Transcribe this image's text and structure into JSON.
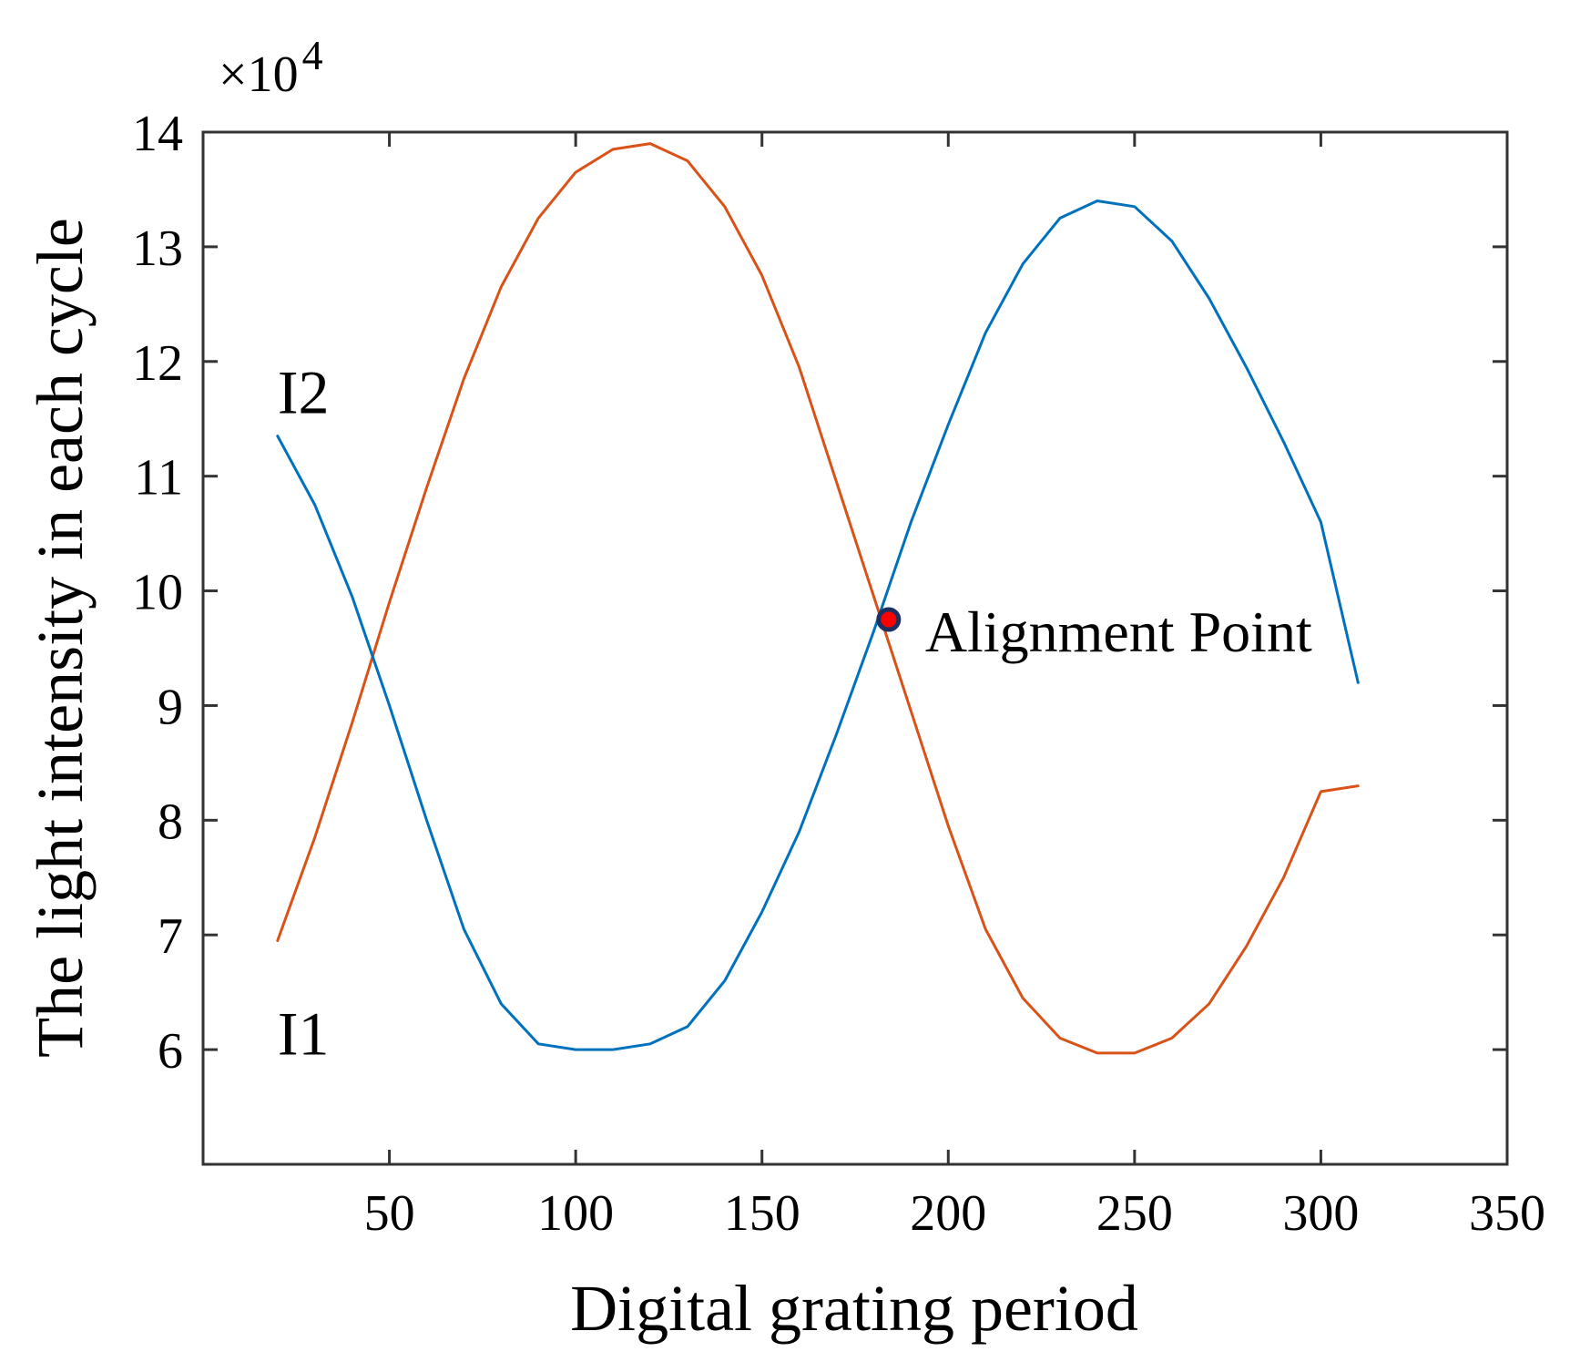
{
  "chart_data": {
    "type": "line",
    "title": "",
    "xlabel": "Digital grating period",
    "ylabel": "The light intensity in each cycle",
    "y_multiplier_label": "×10",
    "y_multiplier_exponent": "4",
    "xlim": [
      0,
      350
    ],
    "ylim": [
      5,
      14
    ],
    "xticks": [
      50,
      100,
      150,
      200,
      250,
      300,
      350
    ],
    "yticks": [
      6,
      7,
      8,
      9,
      10,
      11,
      12,
      13,
      14
    ],
    "grid": false,
    "legend": "none",
    "x": [
      20,
      30,
      40,
      50,
      60,
      70,
      80,
      90,
      100,
      110,
      120,
      130,
      140,
      150,
      160,
      170,
      180,
      190,
      200,
      210,
      220,
      230,
      240,
      250,
      260,
      270,
      280,
      290,
      300,
      310
    ],
    "series": [
      {
        "name": "I1",
        "color": "#d95319",
        "values": [
          6.95,
          7.85,
          8.85,
          9.9,
          10.9,
          11.85,
          12.65,
          13.25,
          13.65,
          13.85,
          13.9,
          13.75,
          13.35,
          12.75,
          11.95,
          10.95,
          9.95,
          8.95,
          7.95,
          7.05,
          6.45,
          6.1,
          5.97,
          5.97,
          6.1,
          6.4,
          6.9,
          7.5,
          8.25,
          8.3
        ],
        "values_note_removed": true,
        "label_text": "I1"
      },
      {
        "name": "I2",
        "color": "#0072bd",
        "values": [
          11.35,
          10.75,
          9.95,
          9.0,
          8.0,
          7.05,
          6.4,
          6.05,
          6.0,
          6.0,
          6.05,
          6.2,
          6.6,
          7.2,
          7.9,
          8.75,
          9.65,
          10.6,
          11.45,
          12.25,
          12.85,
          13.25,
          13.4,
          13.35,
          13.05,
          12.55,
          11.95,
          11.3,
          10.6,
          9.2
        ],
        "label_text": "I2"
      }
    ],
    "annotations": [
      {
        "label": "Alignment Point",
        "x": 184,
        "y": 9.75,
        "marker_face_color": "#ff0000",
        "marker_edge_color": "#1f2f5f"
      }
    ]
  }
}
